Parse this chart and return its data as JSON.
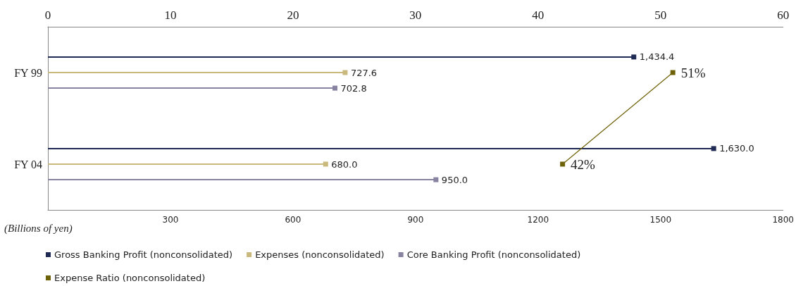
{
  "chart_data": {
    "type": "lollipop",
    "orientation": "horizontal",
    "marker": "square",
    "xlabel": "(Billions of yen)",
    "categories": [
      "FY 99",
      "FY 04"
    ],
    "series": [
      {
        "name": "Gross Banking Profit (nonconsolidated)",
        "color": "#1f2a55",
        "values": [
          1434.4,
          1630.0
        ],
        "value_labels": [
          "1,434.4",
          "1,630.0"
        ]
      },
      {
        "name": "Expenses (nonconsolidated)",
        "color": "#c9b97c",
        "values": [
          727.6,
          680.0
        ],
        "value_labels": [
          "727.6",
          "680.0"
        ]
      },
      {
        "name": "Core Banking Profit (nonconsolidated)",
        "color": "#8783a0",
        "values": [
          702.8,
          950.0
        ],
        "value_labels": [
          "702.8",
          "950.0"
        ]
      },
      {
        "name": "Expense Ratio (nonconsolidated)",
        "type": "line",
        "axis": "x2",
        "color": "#6e6208",
        "values": [
          51,
          42
        ],
        "value_labels": [
          "51%",
          "42%"
        ]
      }
    ],
    "xlim": [
      0,
      1800
    ],
    "xticks": [
      300,
      600,
      900,
      1200,
      1500,
      1800
    ],
    "x2lim": [
      0,
      60
    ],
    "x2ticks": [
      0,
      10,
      20,
      30,
      40,
      50,
      60
    ],
    "grid": false,
    "legend": "bottom"
  }
}
